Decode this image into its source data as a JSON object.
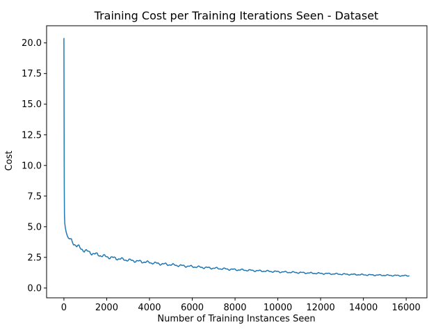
{
  "chart_data": {
    "type": "line",
    "title": "Training Cost per Training Iterations Seen -  Dataset",
    "xlabel": "Number of Training Instances Seen",
    "ylabel": "Cost",
    "xlim": [
      -810,
      16970
    ],
    "ylim": [
      -0.8,
      21.4
    ],
    "xticks": [
      0,
      2000,
      4000,
      6000,
      8000,
      10000,
      12000,
      14000,
      16000
    ],
    "yticks": [
      0.0,
      2.5,
      5.0,
      7.5,
      10.0,
      12.5,
      15.0,
      17.5,
      20.0
    ],
    "ytick_labels": [
      "0.0",
      "2.5",
      "5.0",
      "7.5",
      "10.0",
      "12.5",
      "15.0",
      "17.5",
      "20.0"
    ],
    "grid": false,
    "legend": "none",
    "series": [
      {
        "color": "#1f77b4",
        "x": [
          0,
          8,
          16,
          25,
          40,
          60,
          80,
          100,
          150,
          200,
          300,
          400,
          500,
          600,
          800,
          1000,
          1200,
          1500,
          2000,
          2500,
          3000,
          3500,
          4000,
          4500,
          5000,
          5500,
          6000,
          6500,
          7000,
          7500,
          8000,
          8500,
          9000,
          9500,
          10000,
          10500,
          11000,
          11500,
          12000,
          12500,
          13000,
          13500,
          14000,
          14500,
          15000,
          15500,
          16000,
          16150
        ],
        "y": [
          20.4,
          14.0,
          8.5,
          6.0,
          5.3,
          5.0,
          4.8,
          4.6,
          4.3,
          4.1,
          3.9,
          3.75,
          3.6,
          3.45,
          3.2,
          3.05,
          2.9,
          2.75,
          2.55,
          2.4,
          2.28,
          2.18,
          2.08,
          1.98,
          1.9,
          1.82,
          1.75,
          1.68,
          1.62,
          1.56,
          1.5,
          1.46,
          1.41,
          1.37,
          1.33,
          1.29,
          1.26,
          1.22,
          1.19,
          1.16,
          1.13,
          1.11,
          1.08,
          1.06,
          1.04,
          1.02,
          1.0,
          1.0
        ]
      }
    ]
  }
}
